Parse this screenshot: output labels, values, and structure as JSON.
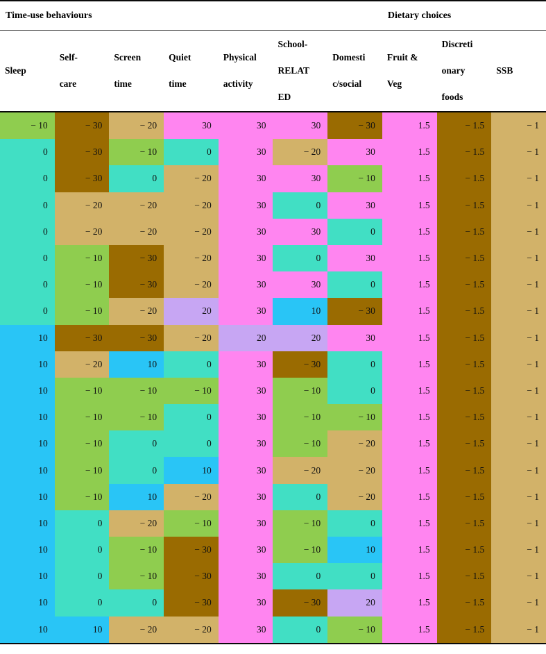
{
  "page": {
    "background": "#ffffff"
  },
  "table": {
    "group_headers": [
      {
        "label": "Time-use behaviours",
        "columns_span": 7
      },
      {
        "label": "Dietary choices",
        "columns_span": 3
      }
    ],
    "columns": [
      {
        "id": "sleep",
        "label": "Sleep",
        "label_lines": [
          "Sleep"
        ]
      },
      {
        "id": "self-care",
        "label": "Self-care",
        "label_lines": [
          "Self-",
          "care"
        ]
      },
      {
        "id": "screen-time",
        "label": "Screen time",
        "label_lines": [
          "Screen",
          "time"
        ]
      },
      {
        "id": "quiet-time",
        "label": "Quiet time",
        "label_lines": [
          "Quiet",
          "time"
        ]
      },
      {
        "id": "physical-activity",
        "label": "Physical activity",
        "label_lines": [
          "Physical",
          "activity"
        ]
      },
      {
        "id": "school-related",
        "label": "School-RELATED",
        "label_lines": [
          "School-",
          "RELAT",
          "ED"
        ]
      },
      {
        "id": "domestic-social",
        "label": "Domestic/social",
        "label_lines": [
          "Domesti",
          "c/social"
        ]
      },
      {
        "id": "fruit-veg",
        "label": "Fruit & Veg",
        "label_lines": [
          "Fruit &",
          "Veg"
        ]
      },
      {
        "id": "discretionary-foods",
        "label": "Discretionary foods",
        "label_lines": [
          "Discreti",
          "onary",
          "foods"
        ]
      },
      {
        "id": "ssb",
        "label": "SSB",
        "label_lines": [
          "SSB"
        ]
      }
    ],
    "value_colors": {
      "30": "#FF85F0",
      "20": "#C7A6F3",
      "10": "#29C5F6",
      "0": "#41DFC4",
      "-10": "#8FCD4F",
      "-20": "#D2B269",
      "-30": "#9A6B01",
      "1.5": "#FF85F0",
      "-1": "#D2B269",
      "-1.5": "#9A6B01"
    },
    "minus_glyph": "− ",
    "text_color": "#111111",
    "rows": [
      [
        -10,
        -30,
        -20,
        30,
        30,
        30,
        -30,
        1.5,
        -1.5,
        -1
      ],
      [
        0,
        -30,
        -10,
        0,
        30,
        -20,
        30,
        1.5,
        -1.5,
        -1
      ],
      [
        0,
        -30,
        0,
        -20,
        30,
        30,
        -10,
        1.5,
        -1.5,
        -1
      ],
      [
        0,
        -20,
        -20,
        -20,
        30,
        0,
        30,
        1.5,
        -1.5,
        -1
      ],
      [
        0,
        -20,
        -20,
        -20,
        30,
        30,
        0,
        1.5,
        -1.5,
        -1
      ],
      [
        0,
        -10,
        -30,
        -20,
        30,
        0,
        30,
        1.5,
        -1.5,
        -1
      ],
      [
        0,
        -10,
        -30,
        -20,
        30,
        30,
        0,
        1.5,
        -1.5,
        -1
      ],
      [
        0,
        -10,
        -20,
        20,
        30,
        10,
        -30,
        1.5,
        -1.5,
        -1
      ],
      [
        10,
        -30,
        -30,
        -20,
        20,
        20,
        30,
        1.5,
        -1.5,
        -1
      ],
      [
        10,
        -20,
        10,
        0,
        30,
        -30,
        0,
        1.5,
        -1.5,
        -1
      ],
      [
        10,
        -10,
        -10,
        -10,
        30,
        -10,
        0,
        1.5,
        -1.5,
        -1
      ],
      [
        10,
        -10,
        -10,
        0,
        30,
        -10,
        -10,
        1.5,
        -1.5,
        -1
      ],
      [
        10,
        -10,
        0,
        0,
        30,
        -10,
        -20,
        1.5,
        -1.5,
        -1
      ],
      [
        10,
        -10,
        0,
        10,
        30,
        -20,
        -20,
        1.5,
        -1.5,
        -1
      ],
      [
        10,
        -10,
        10,
        -20,
        30,
        0,
        -20,
        1.5,
        -1.5,
        -1
      ],
      [
        10,
        0,
        -20,
        -10,
        30,
        -10,
        0,
        1.5,
        -1.5,
        -1
      ],
      [
        10,
        0,
        -10,
        -30,
        30,
        -10,
        10,
        1.5,
        -1.5,
        -1
      ],
      [
        10,
        0,
        -10,
        -30,
        30,
        0,
        0,
        1.5,
        -1.5,
        -1
      ],
      [
        10,
        0,
        0,
        -30,
        30,
        -30,
        20,
        1.5,
        -1.5,
        -1
      ],
      [
        10,
        10,
        -20,
        -20,
        30,
        0,
        -10,
        1.5,
        -1.5,
        -1
      ]
    ]
  }
}
